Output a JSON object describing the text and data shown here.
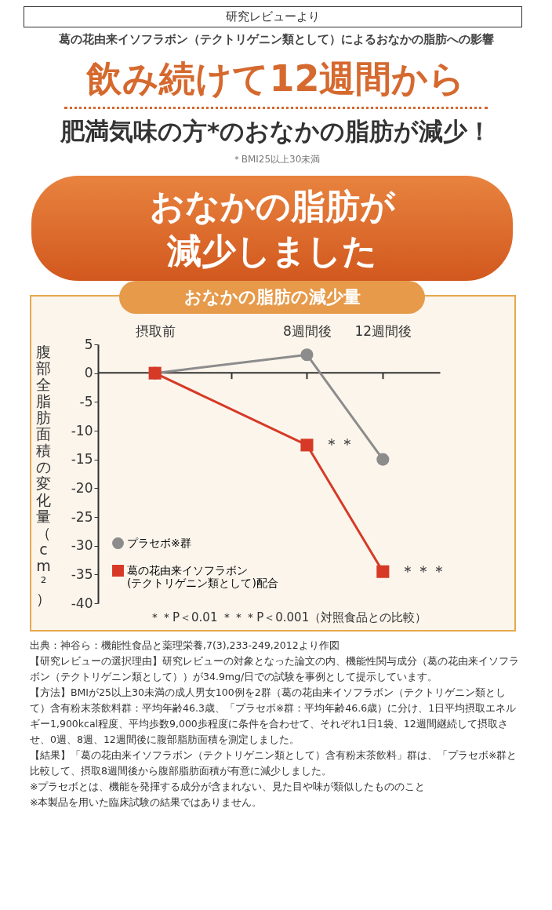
{
  "chart_data": {
    "type": "line",
    "title": "研究レビューより",
    "subtitle": "葛の花由来イソフラボン（テクトリゲニン類として）によるおなかの脂肪への影響",
    "ylabel": "腹部全脂肪面積の変化量（cm²）",
    "x": [
      0,
      8,
      12
    ],
    "xlim": [
      -3,
      15
    ],
    "xticks": [
      {
        "value": 0,
        "label": "摂取前"
      },
      {
        "value": 4,
        "label": null
      },
      {
        "value": 8,
        "label": "8週間後"
      },
      {
        "value": 12,
        "label": "12週間後"
      }
    ],
    "ylim": [
      -40,
      5
    ],
    "yticks": [
      5,
      0,
      -5,
      -10,
      -15,
      -20,
      -25,
      -30,
      -35,
      -40
    ],
    "grid": false,
    "legend": "bottom left",
    "series": [
      {
        "name": "プラセボ※群",
        "color": "#8c8c8c",
        "marker": "circle",
        "values": [
          0,
          3.2,
          -15
        ]
      },
      {
        "name": "葛の花由来イソフラボン\n(テクトリゲニン類として)配合",
        "color": "#d63a27",
        "marker": "square",
        "values": [
          0,
          -12.5,
          -34.5
        ]
      }
    ],
    "annotations": [
      "飲み続けて12週間から",
      "肥満気味の方*のおなかの脂肪が減少！",
      "＊BMI25以上30未満",
      "おなかの脂肪が減少しました",
      "おなかの脂肪の減少量",
      {
        "text": "＊＊",
        "x": 8,
        "y": -12.5
      },
      {
        "text": "＊＊＊",
        "x": 12,
        "y": -34.5
      },
      "＊＊P＜0.01 ＊＊＊P＜0.001（対照食品との比較）",
      "出典：神谷ら：機能性食品と薬理栄養,7(3),233-249,2012より作図",
      "【研究レビューの選択理由】研究レビューの対象となった論文の内、機能性関与成分（葛の花由来イソフラボン（テクトリゲニン類として））が34.9mg/日での試験を事例として提示しています。",
      "【方法】BMIが25以上30未満の成人男女100例を2群（葛の花由来イソフラボン（テクトリゲニン類として）含有粉末茶飲料群：平均年齢46.3歳、「プラセボ※群：平均年齢46.6歳）に分け、1日平均摂取エネルギー1,900kcal程度、平均歩数9,000歩程度に条件を合わせて、それぞれ1日1袋、12週間継続して摂取させ、0週、8週、12週間後に腹部脂肪面積を測定しました。",
      "【結果】「葛の花由来イソフラボン（テクトリゲニン類として）含有粉末茶飲料」群は、「プラセボ※群と比較して、摂取8週間後から腹部脂肪面積が有意に減少しました。",
      "※プラセボとは、機能を発揮する成分が含まれない、見た目や味が類似したもののこと",
      "※本製品を用いた臨床試験の結果ではありません。"
    ]
  }
}
